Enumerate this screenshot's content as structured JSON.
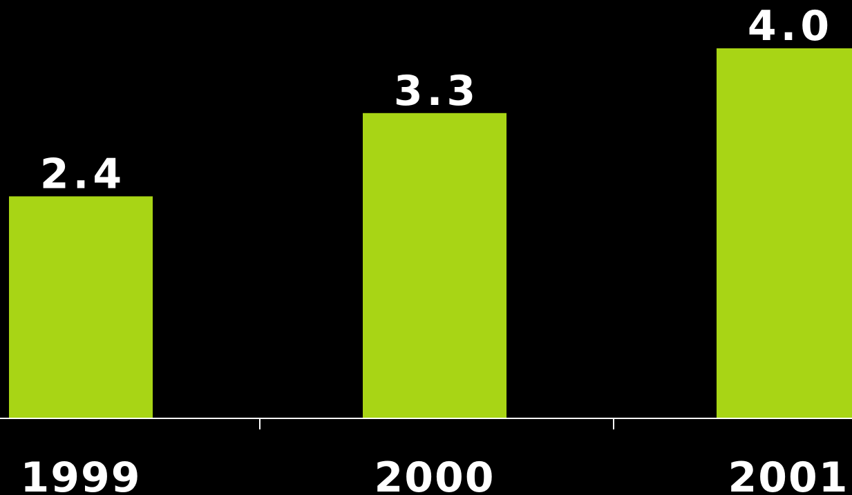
{
  "chart_data": {
    "type": "bar",
    "categories": [
      "1999",
      "2000",
      "2001"
    ],
    "values": [
      2.4,
      3.3,
      4.0
    ],
    "value_labels": [
      "2.4",
      "3.3",
      "4.0"
    ],
    "title": "",
    "xlabel": "",
    "ylabel": "",
    "ylim": [
      0,
      4.0
    ],
    "grid": false,
    "colors": {
      "background": "#000000",
      "bar": "#a8d515",
      "axis": "#ffffff",
      "text": "#ffffff"
    }
  }
}
